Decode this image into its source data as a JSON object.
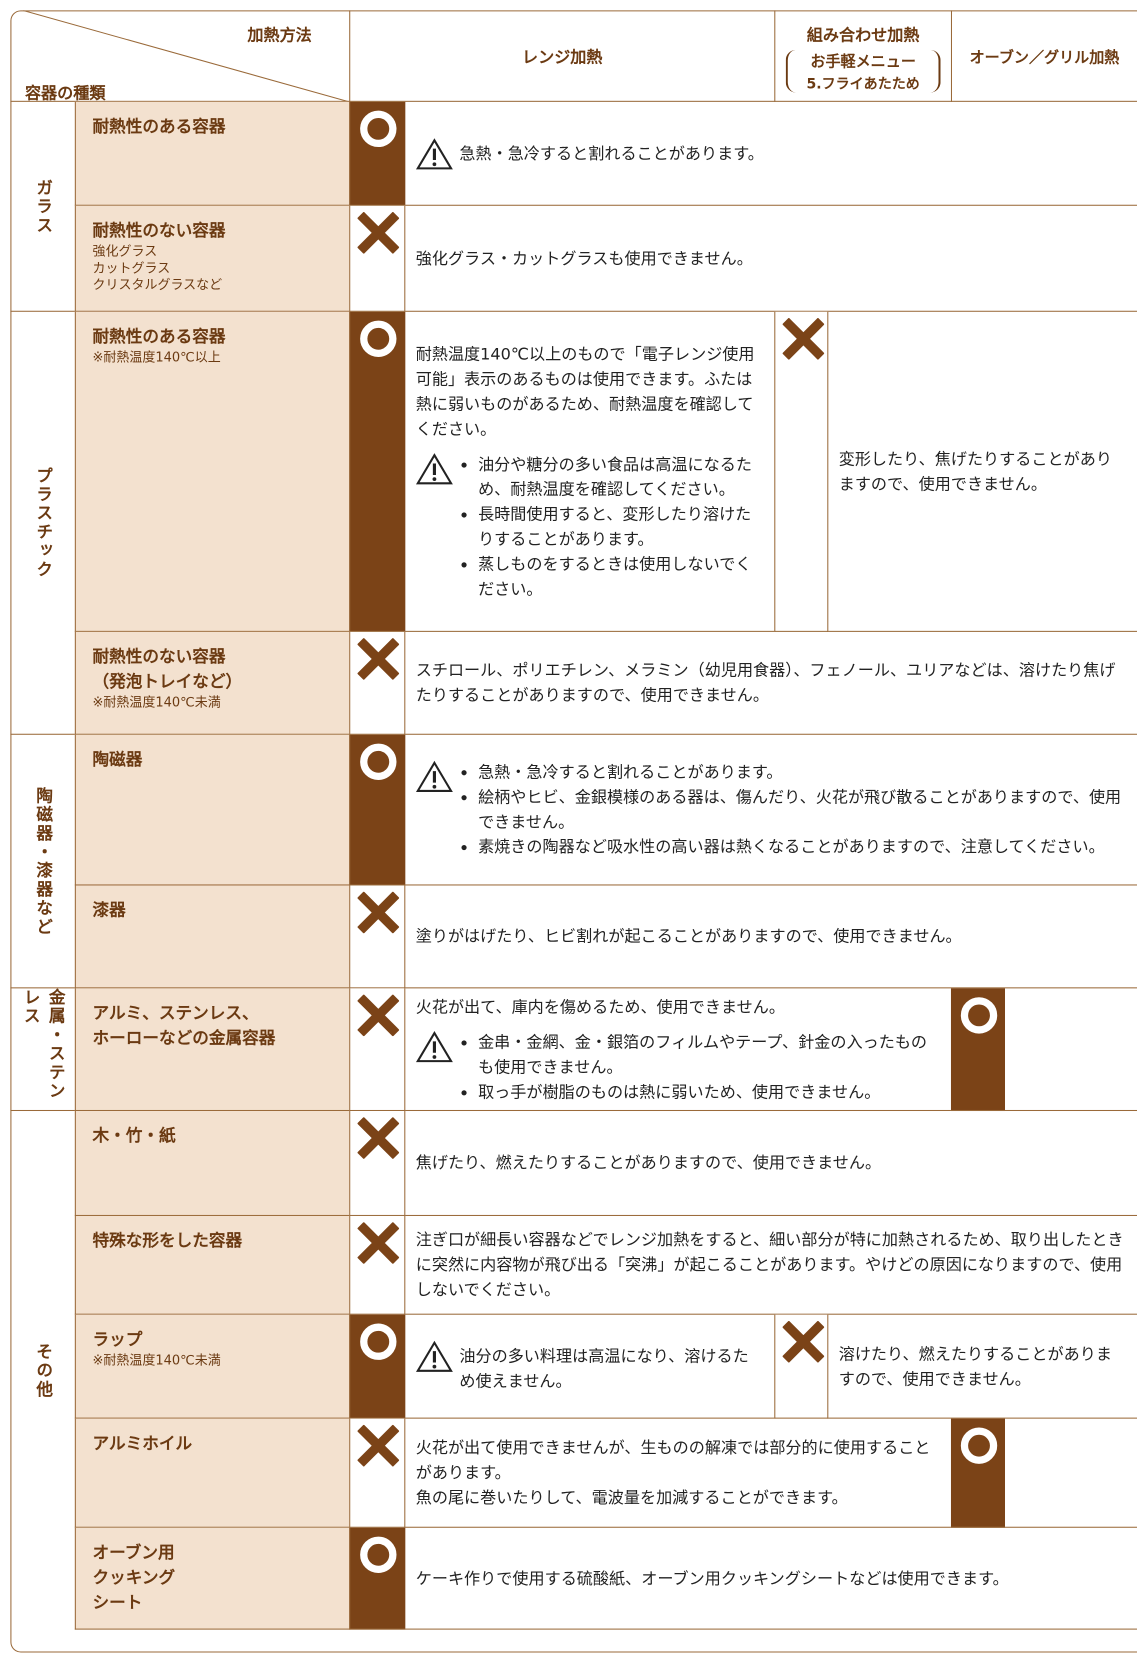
{
  "header": {
    "heat_method": "加熱方法",
    "container_type": "容器の種類",
    "range": "レンジ加熱",
    "combo_title": "組み合わせ加熱",
    "combo_menu": "お手軽メニュー",
    "combo_item": "5.フライあたため",
    "oven": "オーブン／グリル加熱"
  },
  "groups": [
    {
      "label": "ガラス",
      "rows": [
        {
          "name": [
            "耐熱性のある容器"
          ],
          "range_ok": true,
          "warning": "急熱・急冷すると割れることがあります。"
        },
        {
          "name": [
            "耐熱性のない容器"
          ],
          "notes": [
            "強化グラス",
            "カットグラス",
            "クリスタルグラスなど"
          ],
          "range_ok": false,
          "text": [
            "強化グラス・カットグラスも使用できません。"
          ]
        }
      ]
    },
    {
      "label": "プラスチック",
      "rows": [
        {
          "name": [
            "耐熱性のある容器"
          ],
          "notes": [
            "※耐熱温度140℃以上"
          ],
          "range_ok": true,
          "text": [
            "耐熱温度140℃以上のもので「電子レンジ使用可能」表示のあるものは使用できます。ふたは熱に弱いものがあるため、耐熱温度を確認してください。"
          ],
          "warning": [
            "油分や糖分の多い食品は高温になるため、耐熱温度を確認してください。",
            "長時間使用すると、変形したり溶けたりすることがあります。",
            "蒸しものをするときは使用しないでください。"
          ],
          "combo_ok": false,
          "combo_text": "変形したり、焦げたりすることがありますので、使用できません。"
        },
        {
          "name": [
            "耐熱性のない容器",
            "（発泡トレイなど）"
          ],
          "notes": [
            "※耐熱温度140℃未満"
          ],
          "range_ok": false,
          "text": [
            "スチロール、ポリエチレン、メラミン（幼児用食器）、フェノール、ユリアなどは、溶けたり焦げたりすることがありますので、使用できません。"
          ]
        }
      ]
    },
    {
      "label": "陶磁器・漆器など",
      "rows": [
        {
          "name": [
            "陶磁器"
          ],
          "range_ok": true,
          "warning": [
            "急熱・急冷すると割れることがあります。",
            "絵柄やヒビ、金銀模様のある器は、傷んだり、火花が飛び散ることがありますので、使用できません。",
            "素焼きの陶器など吸水性の高い器は熱くなることがありますので、注意してください。"
          ]
        },
        {
          "name": [
            "漆器"
          ],
          "range_ok": false,
          "text": [
            "塗りがはげたり、ヒビ割れが起こることがありますので、使用できません。"
          ]
        }
      ]
    },
    {
      "label": "金属・ステンレス",
      "rows": [
        {
          "name": [
            "アルミ、ステンレス、",
            "ホーローなどの金属容器"
          ],
          "range_ok": false,
          "text": [
            "火花が出て、庫内を傷めるため、使用できません。"
          ],
          "warning": [
            "金串・金網、金・銀箔のフィルムやテープ、針金の入ったものも使用できません。",
            "取っ手が樹脂のものは熱に弱いため、使用できません。"
          ],
          "oven_ok": true
        }
      ]
    },
    {
      "label": "その他",
      "rows": [
        {
          "name": [
            "木・竹・紙"
          ],
          "range_ok": false,
          "text": [
            "焦げたり、燃えたりすることがありますので、使用できません。"
          ]
        },
        {
          "name": [
            "特殊な形をした容器"
          ],
          "range_ok": false,
          "text": [
            "注ぎ口が細長い容器などでレンジ加熱をすると、細い部分が特に加熱されるため、取り出したときに突然に内容物が飛び出る「突沸」が起こることがあります。やけどの原因になりますので、使用しないでください。"
          ]
        },
        {
          "name": [
            "ラップ"
          ],
          "notes": [
            "※耐熱温度140℃未満"
          ],
          "range_ok": true,
          "warning": "油分の多い料理は高温になり、溶けるため使えません。",
          "combo_ok": false,
          "combo_text": "溶けたり、燃えたりすることがありますので、使用できません。"
        },
        {
          "name": [
            "アルミホイル"
          ],
          "range_ok": false,
          "text": [
            "火花が出て使用できませんが、生ものの解凍では部分的に使用することがあります。",
            "魚の尾に巻いたりして、電波量を加減することができます。"
          ],
          "oven_ok": true
        },
        {
          "name": [
            "オーブン用",
            "クッキング",
            "シート"
          ],
          "range_ok": true,
          "text": [
            "ケーキ作りで使用する硫酸紙、オーブン用クッキングシートなどは使用できます。"
          ]
        }
      ]
    }
  ]
}
